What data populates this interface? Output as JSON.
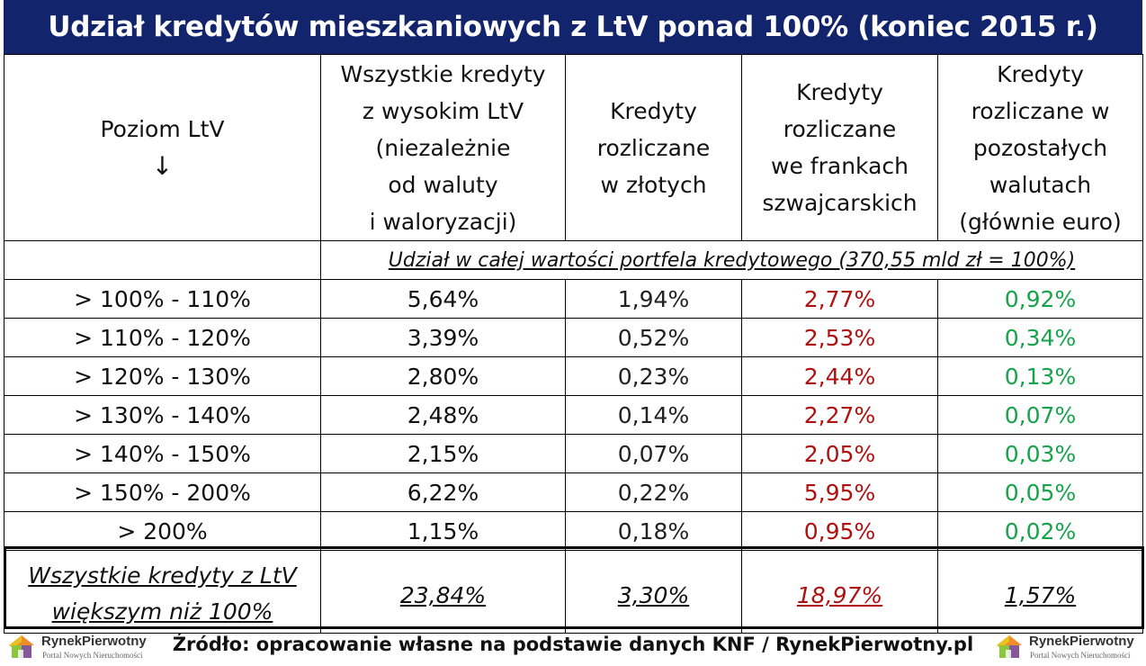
{
  "title": "Udział kredytów mieszkaniowych z LtV ponad 100% (koniec 2015 r.)",
  "headers": {
    "level": "Poziom LtV",
    "level_arrow": "↓",
    "all": [
      "Wszystkie kredyty",
      "z wysokim LtV",
      "(niezależnie",
      "od waluty",
      "i waloryzacji)"
    ],
    "pln": [
      "Kredyty",
      "rozliczane",
      "w złotych"
    ],
    "chf": [
      "Kredyty",
      "rozliczane",
      "we frankach",
      "szwajcarskich"
    ],
    "other": [
      "Kredyty",
      "rozliczane w",
      "pozostałych",
      "walutach",
      "(głównie euro)"
    ]
  },
  "subheader": "Udział w całej wartości portfela kredytowego (370,55 mld zł = 100%)",
  "rows": [
    {
      "level": "> 100% - 110%",
      "all": "5,64%",
      "pln": "1,94%",
      "chf": "2,77%",
      "other": "0,92%"
    },
    {
      "level": "> 110% - 120%",
      "all": "3,39%",
      "pln": "0,52%",
      "chf": "2,53%",
      "other": "0,34%"
    },
    {
      "level": "> 120% - 130%",
      "all": "2,80%",
      "pln": "0,23%",
      "chf": "2,44%",
      "other": "0,13%"
    },
    {
      "level": "> 130% - 140%",
      "all": "2,48%",
      "pln": "0,14%",
      "chf": "2,27%",
      "other": "0,07%"
    },
    {
      "level": "> 140% - 150%",
      "all": "2,15%",
      "pln": "0,07%",
      "chf": "2,05%",
      "other": "0,03%"
    },
    {
      "level": "> 150% - 200%",
      "all": "6,22%",
      "pln": "0,22%",
      "chf": "5,95%",
      "other": "0,05%"
    },
    {
      "level": "> 200%",
      "all": "1,15%",
      "pln": "0,18%",
      "chf": "0,95%",
      "other": "0,02%"
    }
  ],
  "total": {
    "level_line1": "Wszystkie kredyty z LtV",
    "level_line2": "większym niż 100%",
    "all": "23,84%",
    "pln": "3,30%",
    "chf": "18,97%",
    "other": "1,57%"
  },
  "source": "Źródło: opracowanie własne na podstawie danych KNF / RynekPierwotny.pl",
  "logo": {
    "name": "RynekPierwotny",
    "tagline": "Portal Nowych Nieruchomości"
  },
  "colors": {
    "title_bg": "#12246b",
    "chf": "#b01010",
    "other": "#16a34a"
  }
}
